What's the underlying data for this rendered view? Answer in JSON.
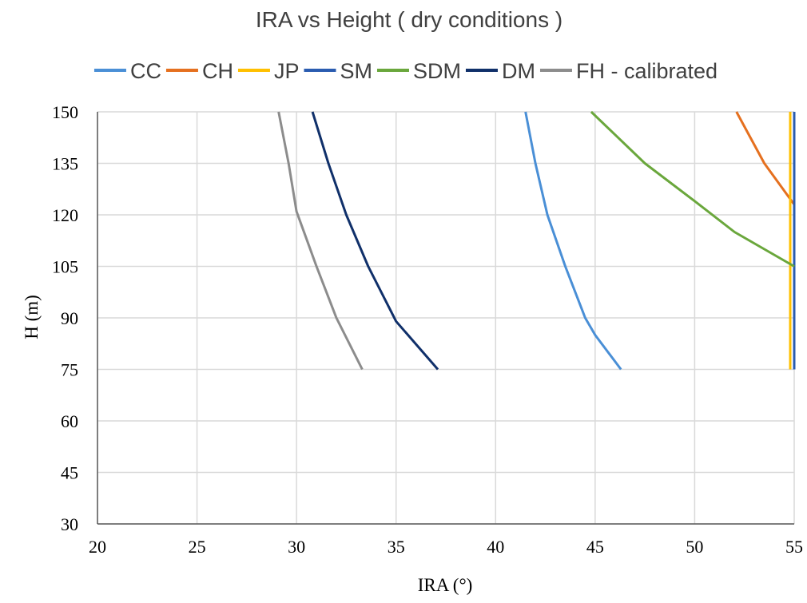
{
  "chart_data": {
    "type": "line",
    "title": "IRA vs Height ( dry conditions )",
    "xlabel": "IRA (°)",
    "ylabel": "H (m)",
    "xlim": [
      20,
      55
    ],
    "ylim": [
      30,
      150
    ],
    "xticks": [
      20,
      25,
      30,
      35,
      40,
      45,
      50,
      55
    ],
    "yticks": [
      30,
      45,
      60,
      75,
      90,
      105,
      120,
      135,
      150
    ],
    "grid": true,
    "legend_position": "top",
    "series": [
      {
        "name": "CC",
        "color": "#4a8fd6",
        "points": [
          [
            46.3,
            75
          ],
          [
            45.0,
            85
          ],
          [
            44.5,
            90
          ],
          [
            43.5,
            105
          ],
          [
            42.6,
            120
          ],
          [
            42.0,
            135
          ],
          [
            41.5,
            150
          ]
        ]
      },
      {
        "name": "CH",
        "color": "#e5701f",
        "points": [
          [
            55,
            123
          ],
          [
            53.5,
            135
          ],
          [
            52.1,
            150
          ]
        ]
      },
      {
        "name": "JP",
        "color": "#ffc000",
        "points": [
          [
            54.8,
            75
          ],
          [
            54.8,
            150
          ]
        ]
      },
      {
        "name": "SM",
        "color": "#2a5cb0",
        "points": [
          [
            55,
            75
          ],
          [
            55,
            150
          ]
        ]
      },
      {
        "name": "SDM",
        "color": "#6aa73c",
        "points": [
          [
            55,
            105
          ],
          [
            52.0,
            115
          ],
          [
            50.0,
            124
          ],
          [
            47.5,
            135
          ],
          [
            44.8,
            150
          ]
        ]
      },
      {
        "name": "DM",
        "color": "#10306a",
        "points": [
          [
            37.1,
            75
          ],
          [
            35.0,
            89
          ],
          [
            33.6,
            105
          ],
          [
            32.5,
            120
          ],
          [
            31.6,
            135
          ],
          [
            30.8,
            150
          ]
        ]
      },
      {
        "name": "FH - calibrated",
        "color": "#8c8c8c",
        "points": [
          [
            33.3,
            75
          ],
          [
            32.0,
            90
          ],
          [
            31.0,
            105
          ],
          [
            30.0,
            121
          ],
          [
            29.6,
            135
          ],
          [
            29.1,
            150
          ]
        ]
      }
    ]
  }
}
